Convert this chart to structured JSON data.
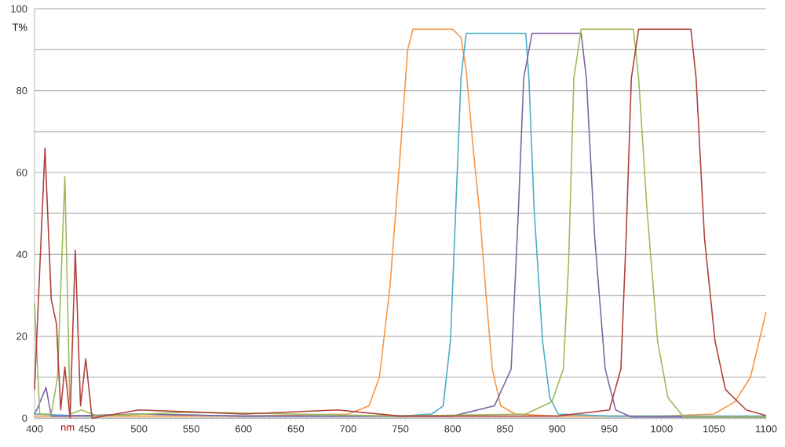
{
  "chart_data": {
    "type": "line",
    "xlabel": "nm",
    "ylabel": "T%",
    "xlim": [
      400,
      1100
    ],
    "ylim": [
      0,
      100
    ],
    "xticks": [
      400,
      450,
      500,
      550,
      600,
      650,
      700,
      750,
      800,
      850,
      900,
      950,
      1000,
      1050,
      1100
    ],
    "yticks": [
      0,
      {
        "value": 10,
        "label": null
      },
      20,
      {
        "value": 30,
        "label": null
      },
      40,
      {
        "value": 50,
        "label": null
      },
      60,
      {
        "value": 70,
        "label": null
      },
      80,
      {
        "value": 90,
        "label": null
      },
      100
    ],
    "grid": "y",
    "marker": "none",
    "line_style": "solid",
    "series": [
      {
        "color": "#f79646",
        "x": [
          400,
          450,
          500,
          600,
          700,
          720,
          730,
          740,
          750,
          757,
          762,
          800,
          808,
          813,
          820,
          826,
          832,
          838,
          846,
          860,
          900,
          1000,
          1050,
          1070,
          1085,
          1100
        ],
        "values": [
          0.5,
          0.5,
          0.5,
          0.5,
          1,
          3,
          10,
          32,
          65,
          90,
          95,
          95,
          93,
          85,
          65,
          50,
          30,
          12,
          3,
          1,
          0.5,
          0.5,
          1,
          4,
          10,
          26
        ]
      },
      {
        "color": "#4bacc6",
        "x": [
          400,
          450,
          500,
          600,
          700,
          750,
          780,
          791,
          798,
          803,
          808,
          813,
          870,
          873,
          878,
          886,
          893,
          901,
          950,
          1100
        ],
        "values": [
          1,
          0.5,
          1,
          0.5,
          0.5,
          0.5,
          1,
          3,
          19,
          51,
          83,
          94,
          94,
          83,
          51,
          19,
          5,
          1,
          0.5,
          0.5
        ]
      },
      {
        "color": "#8064a2",
        "x": [
          400,
          402,
          411,
          416,
          430,
          500,
          600,
          700,
          800,
          840,
          856,
          863,
          868,
          876,
          923,
          928,
          936,
          946,
          956,
          971,
          1100
        ],
        "values": [
          1,
          2,
          7.5,
          0.5,
          0.5,
          1,
          0.5,
          0.5,
          0.5,
          3,
          12,
          51,
          83,
          94,
          94,
          83,
          44,
          12,
          2,
          0.3,
          0.3
        ]
      },
      {
        "color": "#9bbb59",
        "x": [
          400,
          405,
          416,
          422,
          429,
          434,
          445,
          460,
          550,
          650,
          750,
          870,
          895,
          906,
          911,
          916,
          923,
          973,
          978,
          986,
          996,
          1006,
          1021,
          1100
        ],
        "values": [
          28,
          1,
          1,
          10,
          59,
          1,
          2,
          0.5,
          1.5,
          1,
          0.5,
          1,
          4,
          12,
          38,
          83,
          95,
          95,
          83,
          51,
          19,
          5,
          0.3,
          0.3
        ]
      },
      {
        "color": "#b0403c",
        "x": [
          400,
          410,
          416,
          421,
          425,
          429,
          434,
          439,
          444,
          449,
          455,
          500,
          600,
          690,
          750,
          900,
          950,
          961,
          966,
          971,
          978,
          1028,
          1033,
          1041,
          1051,
          1061,
          1081,
          1100
        ],
        "values": [
          7,
          66,
          29,
          23,
          2,
          12.5,
          0,
          41,
          3,
          14.5,
          0,
          2,
          1,
          2,
          0.5,
          0.5,
          2,
          12,
          44,
          83,
          95,
          95,
          83,
          44,
          19,
          7,
          2,
          0.6
        ]
      }
    ]
  }
}
